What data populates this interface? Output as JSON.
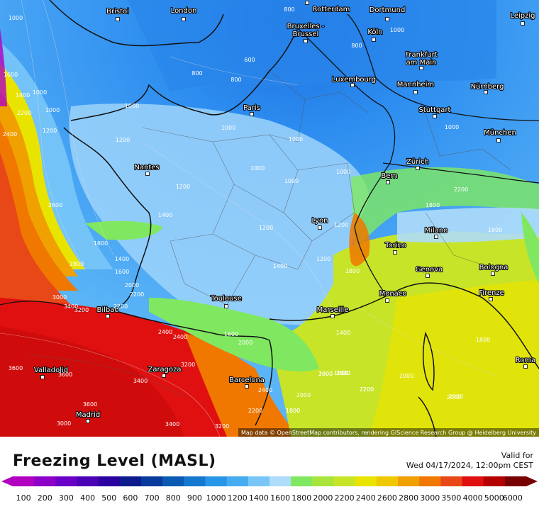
{
  "title": "Freezing Level (MASL)",
  "valid_label": "Valid for",
  "valid_time": "Wed 04/17/2024, 12:00pm CEST",
  "attribution": "Map data © OpenStreetMap contributors, rendering GIScience Research Group @ Heidelberg University",
  "colorbar": {
    "levels": [
      "100",
      "200",
      "300",
      "400",
      "500",
      "600",
      "700",
      "800",
      "900",
      "1000",
      "1200",
      "1400",
      "1600",
      "1800",
      "2000",
      "2200",
      "2400",
      "2600",
      "2800",
      "3000",
      "3500",
      "4000",
      "5000",
      "6000"
    ],
    "colors": [
      "#b000c0",
      "#8c00c8",
      "#6a00c8",
      "#4a00b4",
      "#2a00a0",
      "#0c1a8c",
      "#083a9c",
      "#0a5ab4",
      "#1478d0",
      "#2896e6",
      "#46acf0",
      "#78c6f8",
      "#aedcfa",
      "#80e860",
      "#a8e43c",
      "#c8e428",
      "#e8e400",
      "#f0c800",
      "#f0a000",
      "#f07800",
      "#e84818",
      "#e01010",
      "#b40000",
      "#780000"
    ]
  },
  "cities": [
    {
      "name": "Bristol"
    },
    {
      "name": "London"
    },
    {
      "name": "Rotterdam"
    },
    {
      "name": "Dortmund"
    },
    {
      "name": "Leipzig"
    },
    {
      "name": "Bruxelles - Brussel"
    },
    {
      "name": "Köln"
    },
    {
      "name": "Frankfurt am Main"
    },
    {
      "name": "Luxembourg"
    },
    {
      "name": "Mannheim"
    },
    {
      "name": "Nürnberg"
    },
    {
      "name": "Paris"
    },
    {
      "name": "Stuttgart"
    },
    {
      "name": "München"
    },
    {
      "name": "Nantes"
    },
    {
      "name": "Zürich"
    },
    {
      "name": "Bern"
    },
    {
      "name": "Lyon"
    },
    {
      "name": "Milano"
    },
    {
      "name": "Torino"
    },
    {
      "name": "Bologna"
    },
    {
      "name": "Genova"
    },
    {
      "name": "Firenze"
    },
    {
      "name": "Monaco"
    },
    {
      "name": "Toulouse"
    },
    {
      "name": "Marseille"
    },
    {
      "name": "Bilbao"
    },
    {
      "name": "Valladolid"
    },
    {
      "name": "Zaragoza"
    },
    {
      "name": "Barcelona"
    },
    {
      "name": "Roma"
    },
    {
      "name": "Madrid"
    }
  ],
  "contour_labels": [
    "1000",
    "800",
    "800",
    "800",
    "600",
    "800",
    "1000",
    "1600",
    "1400",
    "2200",
    "2400",
    "1200",
    "1000",
    "1000",
    "1200",
    "1000",
    "1000",
    "1000",
    "1000",
    "1000",
    "1000",
    "1000",
    "1200",
    "1800",
    "2200",
    "1800",
    "1200",
    "1400",
    "2600",
    "1800",
    "1400",
    "1600",
    "2000",
    "2200",
    "1400",
    "1200",
    "1200",
    "1800",
    "3400",
    "3200",
    "3000",
    "2200",
    "2400",
    "2800",
    "2400",
    "1600",
    "2000",
    "3600",
    "3600",
    "3400",
    "3600",
    "3400",
    "3000",
    "3200",
    "3200",
    "2400",
    "2000",
    "2200",
    "1800",
    "1600",
    "2000",
    "2200",
    "2000",
    "2000",
    "1600",
    "1800",
    "1400",
    "1800",
    "2200",
    "2000",
    "1600",
    "2000"
  ]
}
